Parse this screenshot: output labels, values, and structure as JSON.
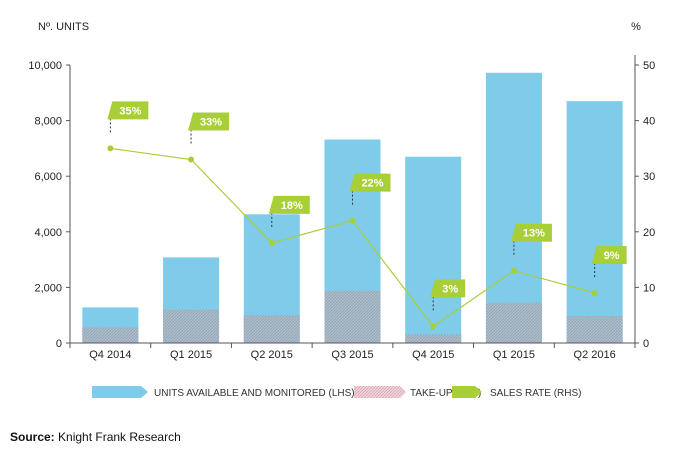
{
  "chart_data": {
    "type": "bar",
    "title": "",
    "ylabel_left": "Nº. UNITS",
    "ylabel_right": "%",
    "ylim_left": [
      0,
      10000
    ],
    "ylim_right": [
      0,
      50
    ],
    "yticks_left": [
      "0",
      "2,000",
      "4,000",
      "6,000",
      "8,000",
      "10,000"
    ],
    "yticks_right": [
      "0",
      "10",
      "20",
      "30",
      "40",
      "50"
    ],
    "categories": [
      "Q4 2014",
      "Q1 2015",
      "Q2 2015",
      "Q3 2015",
      "Q4 2015",
      "Q1 2015",
      "Q2 2016"
    ],
    "series": [
      {
        "name": "UNITS AVAILABLE AND MONITORED (LHS)",
        "axis": "left",
        "kind": "bar",
        "color": "#7ecbea",
        "values": [
          1280,
          3080,
          4630,
          7320,
          6700,
          9720,
          8700
        ]
      },
      {
        "name": "TAKE-UP (LHS)",
        "axis": "left",
        "kind": "bar-overlay",
        "color": "#9fb2c2",
        "values": [
          560,
          1200,
          1000,
          1880,
          310,
          1450,
          970
        ]
      },
      {
        "name": "SALES RATE (RHS)",
        "axis": "right",
        "kind": "line",
        "color": "#a8cf38",
        "values": [
          35,
          33,
          18,
          22,
          3,
          13,
          9
        ],
        "labels": [
          "35%",
          "33%",
          "18%",
          "22%",
          "3%",
          "13%",
          "9%"
        ]
      }
    ]
  },
  "legend": {
    "available": "UNITS AVAILABLE AND MONITORED (LHS)",
    "takeup": "TAKE-UP (LHS)",
    "sales": "SALES RATE (RHS)"
  },
  "source": {
    "label": "Source:",
    "text": " Knight Frank Research"
  }
}
